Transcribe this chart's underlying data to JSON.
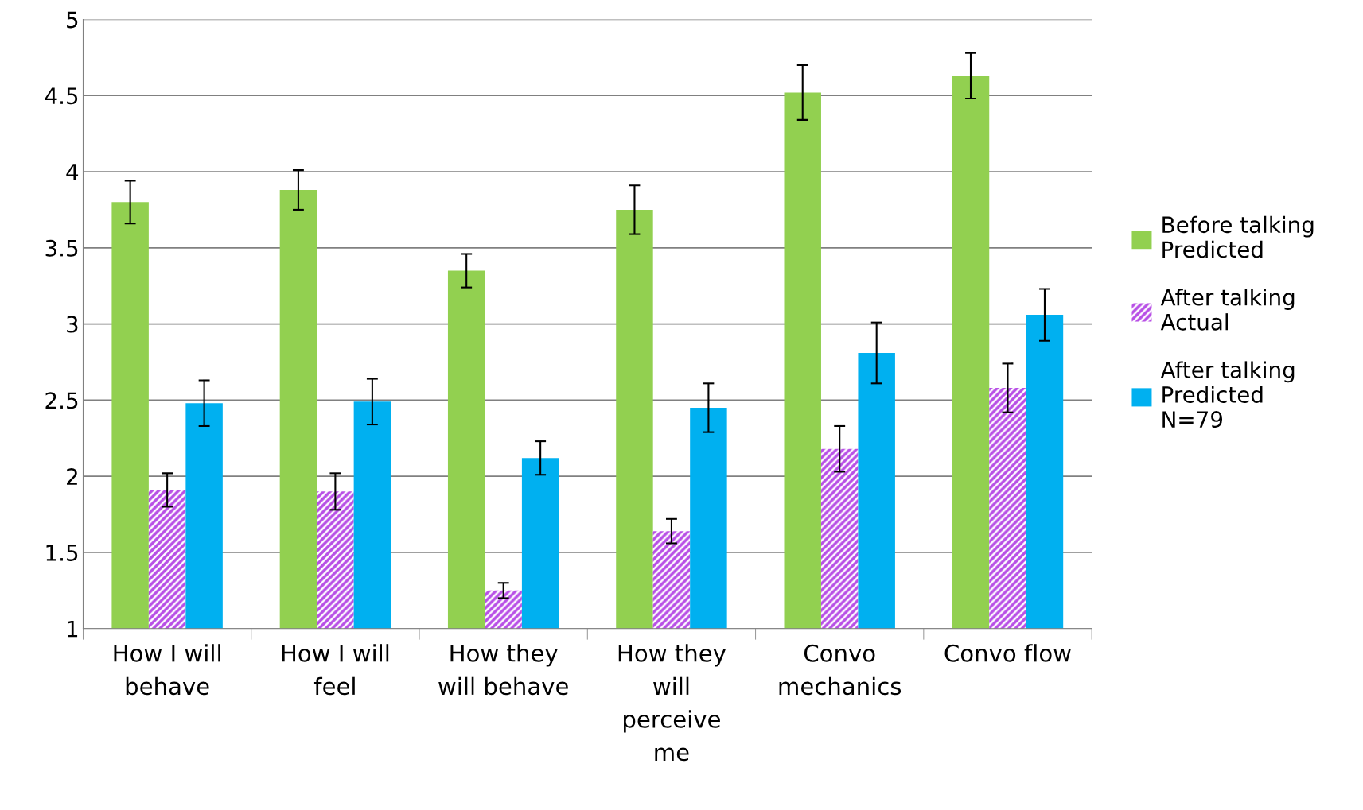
{
  "chart_data": {
    "type": "bar",
    "categories": [
      "How I will\nbehave",
      "How I will\nfeel",
      "How they\nwill behave",
      "How they\nwill\nperceive\nme",
      "Convo\nmechanics",
      "Convo flow"
    ],
    "series": [
      {
        "name": "Before talking\nPredicted",
        "color": "#92d050",
        "values": [
          3.8,
          3.88,
          3.35,
          3.75,
          4.52,
          4.63
        ],
        "errors": [
          0.14,
          0.13,
          0.11,
          0.16,
          0.18,
          0.15
        ]
      },
      {
        "name": "After talking\nActual",
        "color": "#b84fe6",
        "values": [
          1.91,
          1.9,
          1.25,
          1.64,
          2.18,
          2.58
        ],
        "errors": [
          0.11,
          0.12,
          0.05,
          0.08,
          0.15,
          0.16
        ]
      },
      {
        "name": "After talking\nPredicted\nN=79",
        "color": "#00b0f0",
        "values": [
          2.48,
          2.49,
          2.12,
          2.45,
          2.81,
          3.06
        ],
        "errors": [
          0.15,
          0.15,
          0.11,
          0.16,
          0.2,
          0.17
        ]
      }
    ],
    "ylim": [
      1,
      5
    ],
    "yticks": [
      1,
      1.5,
      2,
      2.5,
      3,
      3.5,
      4,
      4.5,
      5
    ],
    "grid": "y",
    "legend": "right"
  }
}
